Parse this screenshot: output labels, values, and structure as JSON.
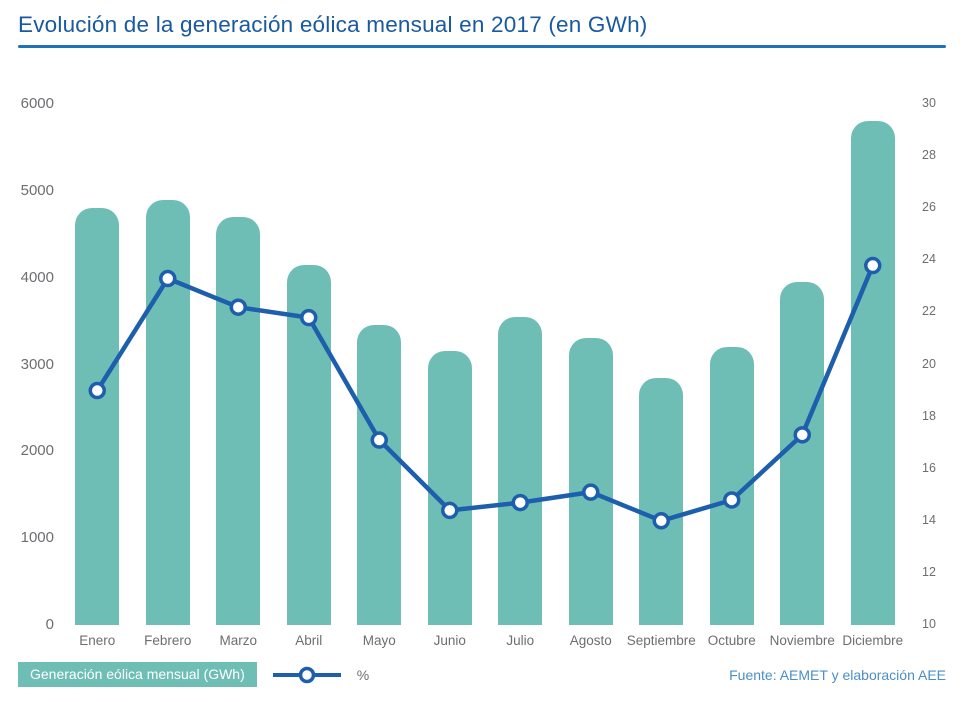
{
  "title": "Evolución de la generación eólica mensual en 2017 (en GWh)",
  "legend": {
    "bars_label": "Generación eólica mensual (GWh)",
    "line_label": "%"
  },
  "source": "Fuente: AEMET y elaboración AEE",
  "colors": {
    "bar": "#6fbeb6",
    "line": "#1d5fad",
    "marker_fill": "#ffffff",
    "title": "#19599f",
    "title_rule": "#1f72b8",
    "axis_text": "#6d6e71",
    "source_text": "#4a8fc7"
  },
  "chart_data": {
    "type": "bar+line combo",
    "title": "Evolución de la generación eólica mensual en 2017 (en GWh)",
    "categories": [
      "Enero",
      "Febrero",
      "Marzo",
      "Abril",
      "Mayo",
      "Junio",
      "Julio",
      "Agosto",
      "Septiembre",
      "Octubre",
      "Noviembre",
      "Diciembre"
    ],
    "series": [
      {
        "name": "Generación eólica mensual (GWh)",
        "type": "bar",
        "axis": "left",
        "values": [
          4800,
          4900,
          4700,
          4150,
          3450,
          3150,
          3550,
          3300,
          2850,
          3200,
          3950,
          5800
        ]
      },
      {
        "name": "%",
        "type": "line",
        "axis": "right",
        "values": [
          19.0,
          23.3,
          22.2,
          21.8,
          17.1,
          14.4,
          14.7,
          15.1,
          14.0,
          14.8,
          17.3,
          23.8
        ]
      }
    ],
    "left_axis": {
      "min": 0,
      "max": 6000,
      "step": 1000,
      "ticks": [
        0,
        1000,
        2000,
        3000,
        4000,
        5000,
        6000
      ]
    },
    "right_axis": {
      "min": 10,
      "max": 30,
      "step": 2,
      "ticks": [
        10,
        12,
        14,
        16,
        18,
        20,
        22,
        24,
        26,
        28,
        30
      ]
    },
    "grid": false,
    "legend_position": "bottom-left"
  }
}
